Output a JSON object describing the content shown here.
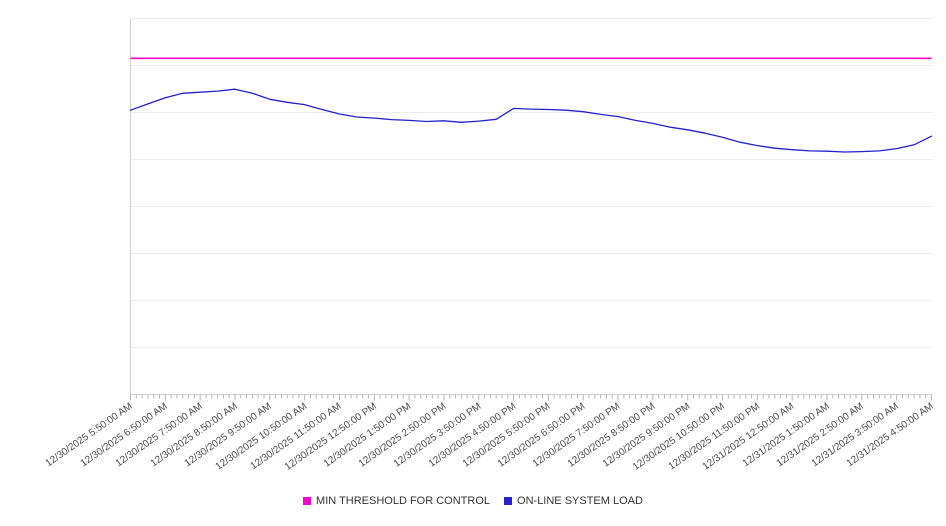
{
  "legend": {
    "items": [
      {
        "label": "MIN THRESHOLD FOR CONTROL",
        "color": "#ff00cc"
      },
      {
        "label": "ON-LINE SYSTEM LOAD",
        "color": "#2222cc"
      }
    ]
  },
  "chart_data": {
    "type": "line",
    "title": "",
    "xlabel": "",
    "ylabel": "",
    "ylim": [
      0,
      100
    ],
    "y_axis_labels_visible": false,
    "grid": "horizontal",
    "legend_position": "bottom",
    "x_tick_labels": [
      "12/30/2025 5:50:00 AM",
      "12/30/2025 6:50:00 AM",
      "12/30/2025 7:50:00 AM",
      "12/30/2025 8:50:00 AM",
      "12/30/2025 9:50:00 AM",
      "12/30/2025 10:50:00 AM",
      "12/30/2025 11:50:00 AM",
      "12/30/2025 12:50:00 PM",
      "12/30/2025 1:50:00 PM",
      "12/30/2025 2:50:00 PM",
      "12/30/2025 3:50:00 PM",
      "12/30/2025 4:50:00 PM",
      "12/30/2025 5:50:00 PM",
      "12/30/2025 6:50:00 PM",
      "12/30/2025 7:50:00 PM",
      "12/30/2025 8:50:00 PM",
      "12/30/2025 9:50:00 PM",
      "12/30/2025 10:50:00 PM",
      "12/30/2025 11:50:00 PM",
      "12/31/2025 12:50:00 AM",
      "12/31/2025 1:50:00 AM",
      "12/31/2025 2:50:00 AM",
      "12/31/2025 3:50:00 AM",
      "12/31/2025 4:50:00 AM"
    ],
    "series": [
      {
        "name": "MIN THRESHOLD FOR CONTROL",
        "color": "#ff00cc",
        "style": "constant",
        "value": 89.4
      },
      {
        "name": "ON-LINE SYSTEM LOAD",
        "color": "#2222cc",
        "start": "12/30/2025 5:50:00 AM",
        "interval_minutes": 30,
        "values": [
          75.6,
          77.3,
          78.9,
          80.1,
          80.4,
          80.7,
          81.2,
          80.1,
          78.5,
          77.7,
          77.1,
          75.8,
          74.6,
          73.8,
          73.5,
          73.1,
          72.9,
          72.6,
          72.8,
          72.4,
          72.7,
          73.2,
          76.1,
          75.9,
          75.8,
          75.6,
          75.2,
          74.5,
          73.9,
          72.9,
          72.1,
          71.1,
          70.4,
          69.5,
          68.4,
          67.1,
          66.2,
          65.5,
          65.1,
          64.8,
          64.7,
          64.5,
          64.6,
          64.8,
          65.4,
          66.4,
          68.7
        ]
      }
    ]
  }
}
